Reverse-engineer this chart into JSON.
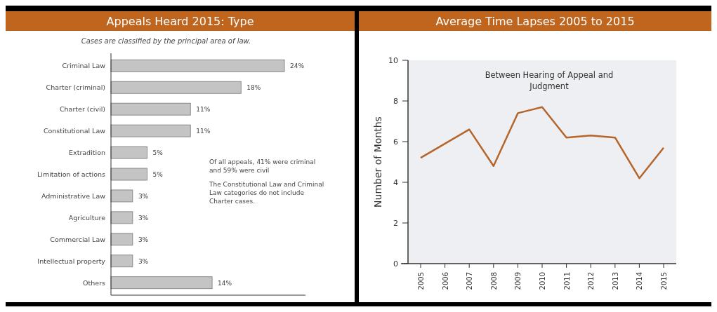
{
  "chart_data": [
    {
      "type": "bar",
      "orientation": "horizontal",
      "title": "Appeals Heard 2015: Type",
      "subtitle": "Cases are classified by the principal area of law.",
      "categories": [
        "Criminal Law",
        "Charter (criminal)",
        "Charter (civil)",
        "Constitutional Law",
        "Extradition",
        "Limitation of actions",
        "Administrative Law",
        "Agriculture",
        "Commercial Law",
        "Intellectual property",
        "Others"
      ],
      "values": [
        24,
        18,
        11,
        11,
        5,
        5,
        3,
        3,
        3,
        3,
        14
      ],
      "value_labels": [
        "24%",
        "18%",
        "11%",
        "11%",
        "5%",
        "5%",
        "3%",
        "3%",
        "3%",
        "3%",
        "14%"
      ],
      "color": "#c4c4c4",
      "annotations": [
        "Of all appeals, 41% were criminal and 59% were civil",
        "The Constitutional Law and Criminal Law categories do not include Charter cases."
      ]
    },
    {
      "type": "line",
      "title": "Average Time Lapses 2005 to 2015",
      "ylabel": "Number of Months",
      "categories": [
        "2005",
        "2006",
        "2007",
        "2008",
        "2009",
        "2010",
        "2011",
        "2012",
        "2013",
        "2014",
        "2015"
      ],
      "series": [
        {
          "color": "#b5652a",
          "values": [
            5.2,
            5.9,
            6.6,
            4.8,
            7.4,
            7.7,
            6.2,
            6.3,
            6.2,
            4.2,
            5.7
          ]
        }
      ],
      "ylim": [
        0,
        10
      ],
      "yticks": [
        0,
        2,
        4,
        6,
        8,
        10
      ],
      "annotations": [
        "Between Hearing of Appeal and Judgment"
      ]
    }
  ]
}
